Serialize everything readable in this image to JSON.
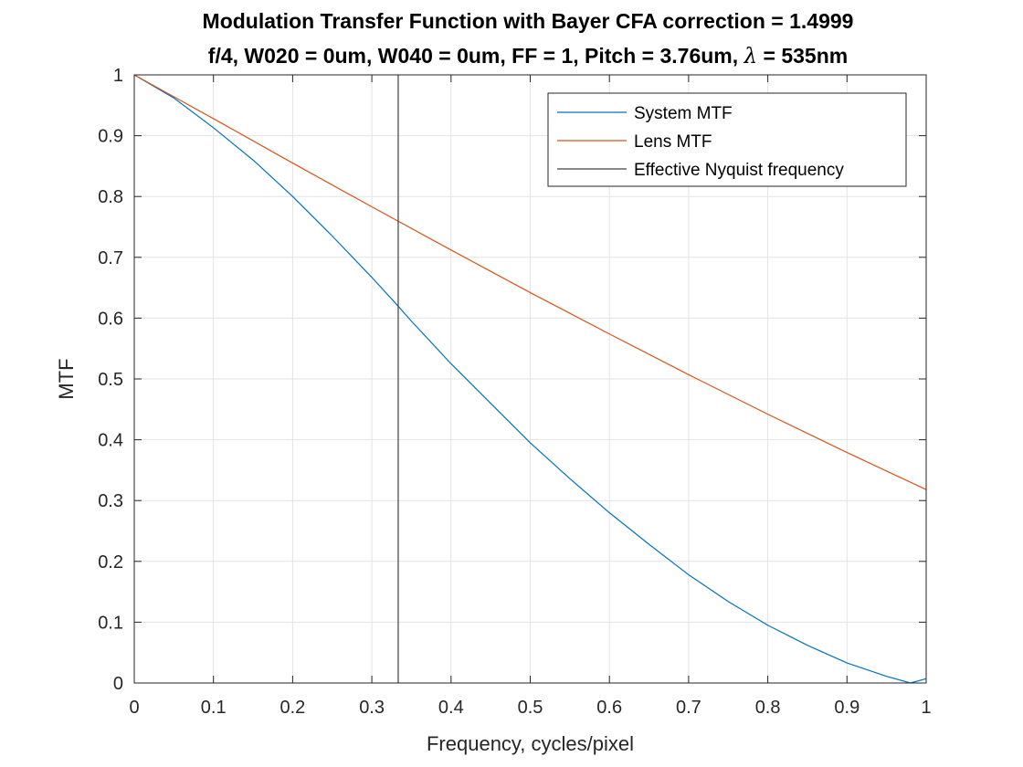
{
  "chart_data": {
    "type": "line",
    "title_line1": "Modulation Transfer Function with Bayer CFA correction = 1.4999",
    "title_line2_prefix": "f/4, W020 = 0um, W040 = 0um, FF = 1, Pitch = 3.76um, ",
    "title_line2_symbol": "λ",
    "title_line2_suffix": " = 535nm",
    "xlabel": "Frequency, cycles/pixel",
    "ylabel": "MTF",
    "xlim": [
      0,
      1
    ],
    "ylim": [
      0,
      1
    ],
    "x_ticks": [
      "0",
      "0.1",
      "0.2",
      "0.3",
      "0.4",
      "0.5",
      "0.6",
      "0.7",
      "0.8",
      "0.9",
      "1"
    ],
    "y_ticks": [
      "0",
      "0.1",
      "0.2",
      "0.3",
      "0.4",
      "0.5",
      "0.6",
      "0.7",
      "0.8",
      "0.9",
      "1"
    ],
    "grid": true,
    "legend_position": "top-right",
    "series": [
      {
        "name": "System MTF",
        "color": "#0072BD",
        "x": [
          0,
          0.05,
          0.1,
          0.15,
          0.2,
          0.25,
          0.3,
          0.333,
          0.35,
          0.4,
          0.45,
          0.5,
          0.55,
          0.6,
          0.65,
          0.7,
          0.75,
          0.8,
          0.85,
          0.9,
          0.95,
          0.98,
          1.0
        ],
        "y": [
          1.0,
          0.962,
          0.913,
          0.86,
          0.8,
          0.735,
          0.667,
          0.62,
          0.595,
          0.525,
          0.46,
          0.395,
          0.336,
          0.28,
          0.228,
          0.178,
          0.134,
          0.095,
          0.062,
          0.033,
          0.011,
          0.0,
          0.007
        ]
      },
      {
        "name": "Lens MTF",
        "color": "#D95319",
        "x": [
          0,
          0.1,
          0.2,
          0.3,
          0.4,
          0.5,
          0.6,
          0.7,
          0.8,
          0.9,
          1.0
        ],
        "y": [
          1.0,
          0.928,
          0.855,
          0.783,
          0.712,
          0.642,
          0.574,
          0.507,
          0.442,
          0.379,
          0.318
        ]
      },
      {
        "name": "Effective Nyquist frequency",
        "color": "#404040",
        "x": [
          0.3333,
          0.3333
        ],
        "y": [
          0,
          1
        ]
      }
    ]
  }
}
